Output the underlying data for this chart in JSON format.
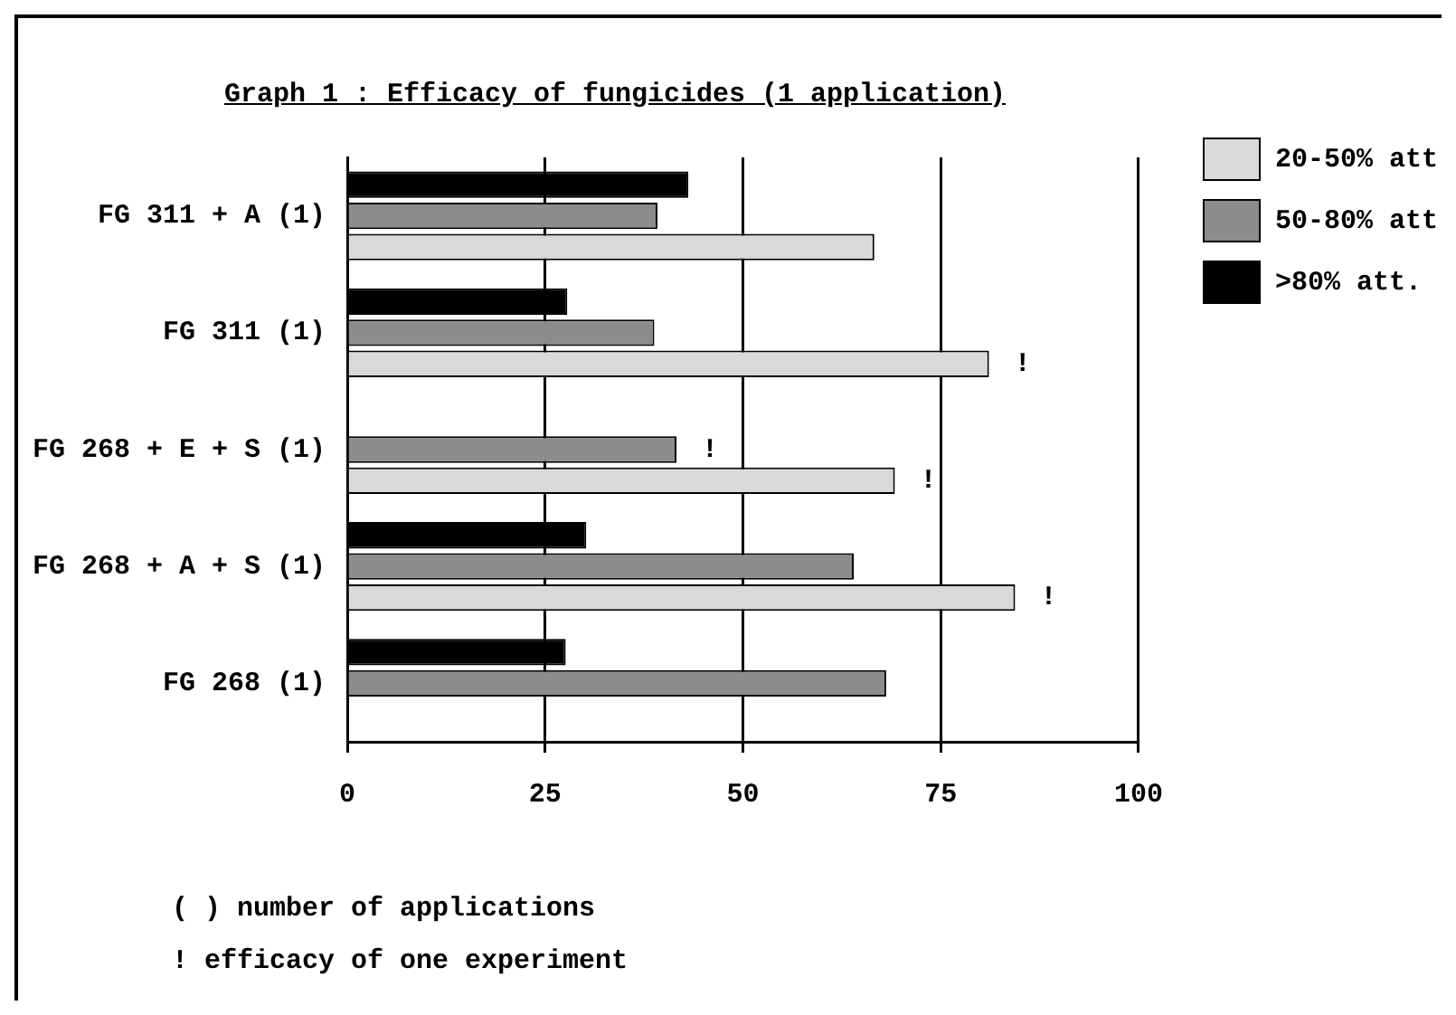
{
  "chart_data": {
    "type": "bar",
    "orientation": "horizontal",
    "title": "Graph 1 : Efficacy of fungicides (1 application)",
    "categories": [
      "FG 311 + A (1)",
      "FG 311 (1)",
      "FG 268 + E + S (1)",
      "FG 268 + A + S (1)",
      "FG 268 (1)"
    ],
    "series": [
      {
        "name": "20-50% att",
        "color": "#d9d9d9",
        "values": [
          66.6,
          81.1,
          69.2,
          84.4,
          null
        ],
        "value_labels": [
          null,
          "!",
          "!",
          "!",
          null
        ]
      },
      {
        "name": "50-80% att",
        "color": "#8c8c8c",
        "values": [
          39.2,
          38.8,
          41.6,
          64,
          68.1
        ],
        "value_labels": [
          null,
          null,
          "!",
          null,
          null
        ]
      },
      {
        "name": ">80% att.",
        "color": "#000000",
        "values": [
          43.1,
          27.8,
          null,
          30.2,
          27.6
        ]
      }
    ],
    "xlim": [
      0,
      100
    ],
    "xticks": [
      0,
      25,
      50,
      75,
      100
    ],
    "grid": "x",
    "legend": "top right",
    "annotations": [
      "( ) number of applications",
      "! efficacy of one experiment"
    ]
  }
}
